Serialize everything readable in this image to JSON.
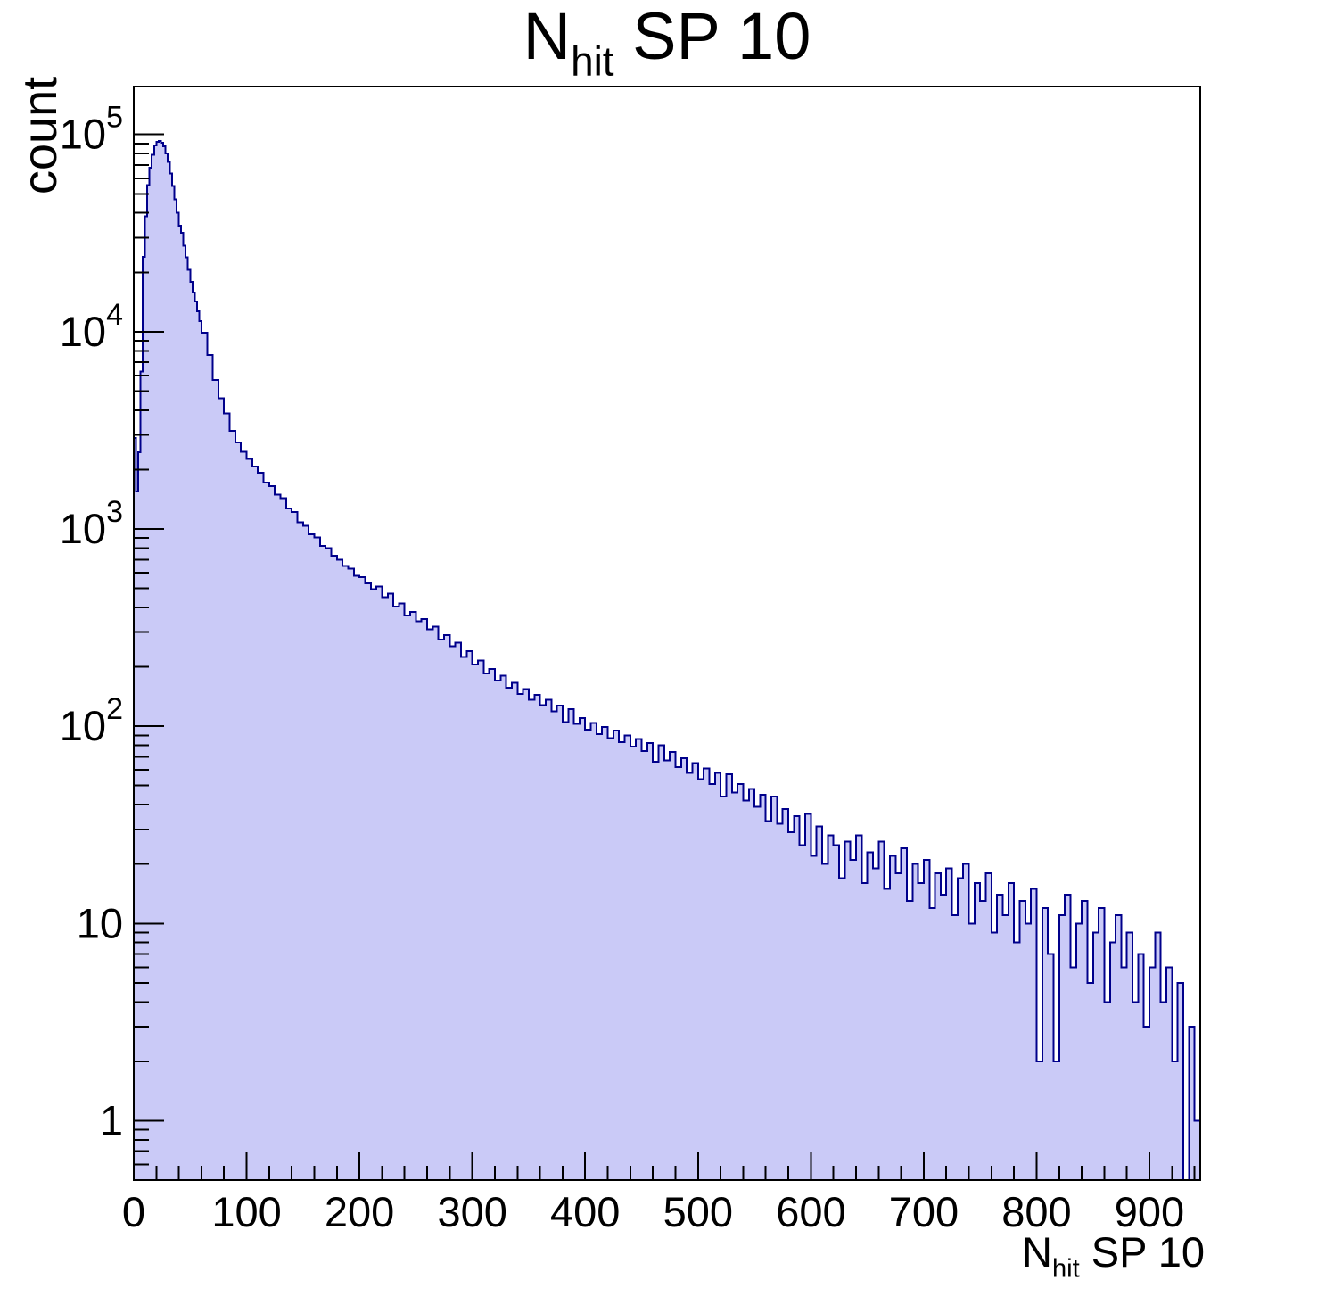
{
  "page": {
    "background": "#ffffff"
  },
  "chart_data": {
    "type": "histogram",
    "title_parts": {
      "pre": "N",
      "sub": "hit",
      "post": " SP 10"
    },
    "x_axis": {
      "title_parts": {
        "pre": "N",
        "sub": "hit",
        "post": " SP 10"
      },
      "min": 0,
      "max": 945,
      "major_ticks": [
        0,
        100,
        200,
        300,
        400,
        500,
        600,
        700,
        800,
        900
      ],
      "tick_labels": [
        "0",
        "100",
        "200",
        "300",
        "400",
        "500",
        "600",
        "700",
        "800",
        "900"
      ],
      "minor_tick_step": 20
    },
    "y_axis": {
      "title": "count",
      "scale": "log",
      "min": 0.5,
      "max": 175000,
      "major_ticks": [
        {
          "value": 1,
          "label": "1"
        },
        {
          "value": 10,
          "label": "10"
        },
        {
          "value": 100,
          "label": "10",
          "exp": "2"
        },
        {
          "value": 1000,
          "label": "10",
          "exp": "3"
        },
        {
          "value": 10000,
          "label": "10",
          "exp": "4"
        },
        {
          "value": 100000,
          "label": "10",
          "exp": "5"
        }
      ]
    },
    "style": {
      "fill_color": "#cacaf7",
      "line_color": "#00008b",
      "frame_color": "#000000",
      "text_color": "#000000"
    },
    "peak": {
      "x": 22,
      "count": 92500
    },
    "bins": [
      [
        0,
        2900
      ],
      [
        2,
        1550
      ],
      [
        4,
        2450
      ],
      [
        6,
        6300
      ],
      [
        8,
        24000
      ],
      [
        10,
        38500
      ],
      [
        12,
        55500
      ],
      [
        14,
        68000
      ],
      [
        16,
        79000
      ],
      [
        18,
        88000
      ],
      [
        20,
        91800
      ],
      [
        22,
        92500
      ],
      [
        24,
        91000
      ],
      [
        26,
        86900
      ],
      [
        28,
        80200
      ],
      [
        30,
        72500
      ],
      [
        32,
        63400
      ],
      [
        34,
        54800
      ],
      [
        36,
        47000
      ],
      [
        38,
        40000
      ],
      [
        40,
        34500
      ],
      [
        42,
        31800
      ],
      [
        44,
        27300
      ],
      [
        46,
        23800
      ],
      [
        48,
        20600
      ],
      [
        50,
        17900
      ],
      [
        52,
        15800
      ],
      [
        54,
        14200
      ],
      [
        56,
        12700
      ],
      [
        58,
        11300
      ],
      [
        60,
        9900
      ],
      [
        65,
        7600
      ],
      [
        70,
        5700
      ],
      [
        75,
        4600
      ],
      [
        80,
        3850
      ],
      [
        85,
        3150
      ],
      [
        90,
        2750
      ],
      [
        95,
        2460
      ],
      [
        100,
        2260
      ],
      [
        105,
        2070
      ],
      [
        110,
        1930
      ],
      [
        115,
        1720
      ],
      [
        120,
        1650
      ],
      [
        125,
        1490
      ],
      [
        130,
        1430
      ],
      [
        135,
        1270
      ],
      [
        140,
        1220
      ],
      [
        145,
        1080
      ],
      [
        150,
        1040
      ],
      [
        155,
        940
      ],
      [
        160,
        905
      ],
      [
        165,
        820
      ],
      [
        170,
        800
      ],
      [
        175,
        730
      ],
      [
        180,
        700
      ],
      [
        185,
        650
      ],
      [
        190,
        630
      ],
      [
        195,
        580
      ],
      [
        200,
        570
      ],
      [
        205,
        530
      ],
      [
        210,
        495
      ],
      [
        215,
        510
      ],
      [
        220,
        450
      ],
      [
        225,
        470
      ],
      [
        230,
        405
      ],
      [
        235,
        420
      ],
      [
        240,
        365
      ],
      [
        245,
        380
      ],
      [
        250,
        340
      ],
      [
        255,
        350
      ],
      [
        260,
        310
      ],
      [
        265,
        320
      ],
      [
        270,
        275
      ],
      [
        275,
        290
      ],
      [
        280,
        255
      ],
      [
        285,
        265
      ],
      [
        290,
        225
      ],
      [
        295,
        240
      ],
      [
        300,
        205
      ],
      [
        305,
        215
      ],
      [
        310,
        185
      ],
      [
        315,
        195
      ],
      [
        320,
        170
      ],
      [
        325,
        180
      ],
      [
        330,
        157
      ],
      [
        335,
        166
      ],
      [
        340,
        146
      ],
      [
        345,
        154
      ],
      [
        350,
        136
      ],
      [
        355,
        144
      ],
      [
        360,
        128
      ],
      [
        365,
        136
      ],
      [
        370,
        119
      ],
      [
        375,
        127
      ],
      [
        380,
        105
      ],
      [
        385,
        122
      ],
      [
        390,
        103
      ],
      [
        395,
        110
      ],
      [
        400,
        96
      ],
      [
        405,
        104
      ],
      [
        410,
        91
      ],
      [
        415,
        99
      ],
      [
        420,
        87
      ],
      [
        425,
        95
      ],
      [
        430,
        83
      ],
      [
        435,
        90
      ],
      [
        440,
        79
      ],
      [
        445,
        86
      ],
      [
        450,
        75
      ],
      [
        455,
        82
      ],
      [
        460,
        66
      ],
      [
        465,
        80
      ],
      [
        470,
        67
      ],
      [
        475,
        74
      ],
      [
        480,
        62
      ],
      [
        485,
        69
      ],
      [
        490,
        58
      ],
      [
        495,
        65
      ],
      [
        500,
        54
      ],
      [
        505,
        61
      ],
      [
        510,
        51
      ],
      [
        515,
        58
      ],
      [
        520,
        44
      ],
      [
        525,
        57
      ],
      [
        530,
        46
      ],
      [
        535,
        51
      ],
      [
        540,
        42
      ],
      [
        545,
        48
      ],
      [
        550,
        39
      ],
      [
        555,
        45
      ],
      [
        560,
        33
      ],
      [
        565,
        44
      ],
      [
        570,
        32
      ],
      [
        575,
        38
      ],
      [
        580,
        29
      ],
      [
        585,
        35
      ],
      [
        590,
        25
      ],
      [
        595,
        36
      ],
      [
        600,
        22
      ],
      [
        605,
        31
      ],
      [
        610,
        20
      ],
      [
        615,
        28
      ],
      [
        620,
        25
      ],
      [
        625,
        17
      ],
      [
        630,
        26
      ],
      [
        635,
        21
      ],
      [
        640,
        28
      ],
      [
        645,
        16
      ],
      [
        650,
        23
      ],
      [
        655,
        19
      ],
      [
        660,
        26
      ],
      [
        665,
        15
      ],
      [
        670,
        22
      ],
      [
        675,
        18
      ],
      [
        680,
        24
      ],
      [
        685,
        13
      ],
      [
        690,
        20
      ],
      [
        695,
        16
      ],
      [
        700,
        21
      ],
      [
        705,
        12
      ],
      [
        710,
        18
      ],
      [
        715,
        14
      ],
      [
        720,
        19
      ],
      [
        725,
        11
      ],
      [
        730,
        17
      ],
      [
        735,
        20
      ],
      [
        740,
        10
      ],
      [
        745,
        16
      ],
      [
        750,
        13
      ],
      [
        755,
        18
      ],
      [
        760,
        9
      ],
      [
        765,
        14
      ],
      [
        770,
        11
      ],
      [
        775,
        16
      ],
      [
        780,
        8
      ],
      [
        785,
        13
      ],
      [
        790,
        10
      ],
      [
        795,
        15
      ],
      [
        800,
        2
      ],
      [
        805,
        12
      ],
      [
        810,
        7
      ],
      [
        815,
        2
      ],
      [
        820,
        11
      ],
      [
        825,
        14
      ],
      [
        830,
        6
      ],
      [
        835,
        10
      ],
      [
        840,
        13
      ],
      [
        845,
        5
      ],
      [
        850,
        9
      ],
      [
        855,
        12
      ],
      [
        860,
        4
      ],
      [
        865,
        8
      ],
      [
        870,
        11
      ],
      [
        875,
        6
      ],
      [
        880,
        9
      ],
      [
        885,
        4
      ],
      [
        890,
        7
      ],
      [
        895,
        3
      ],
      [
        900,
        6
      ],
      [
        905,
        9
      ],
      [
        910,
        4
      ],
      [
        915,
        6
      ],
      [
        920,
        2
      ],
      [
        925,
        5
      ],
      [
        930,
        0
      ],
      [
        935,
        3
      ],
      [
        940,
        1
      ]
    ]
  }
}
